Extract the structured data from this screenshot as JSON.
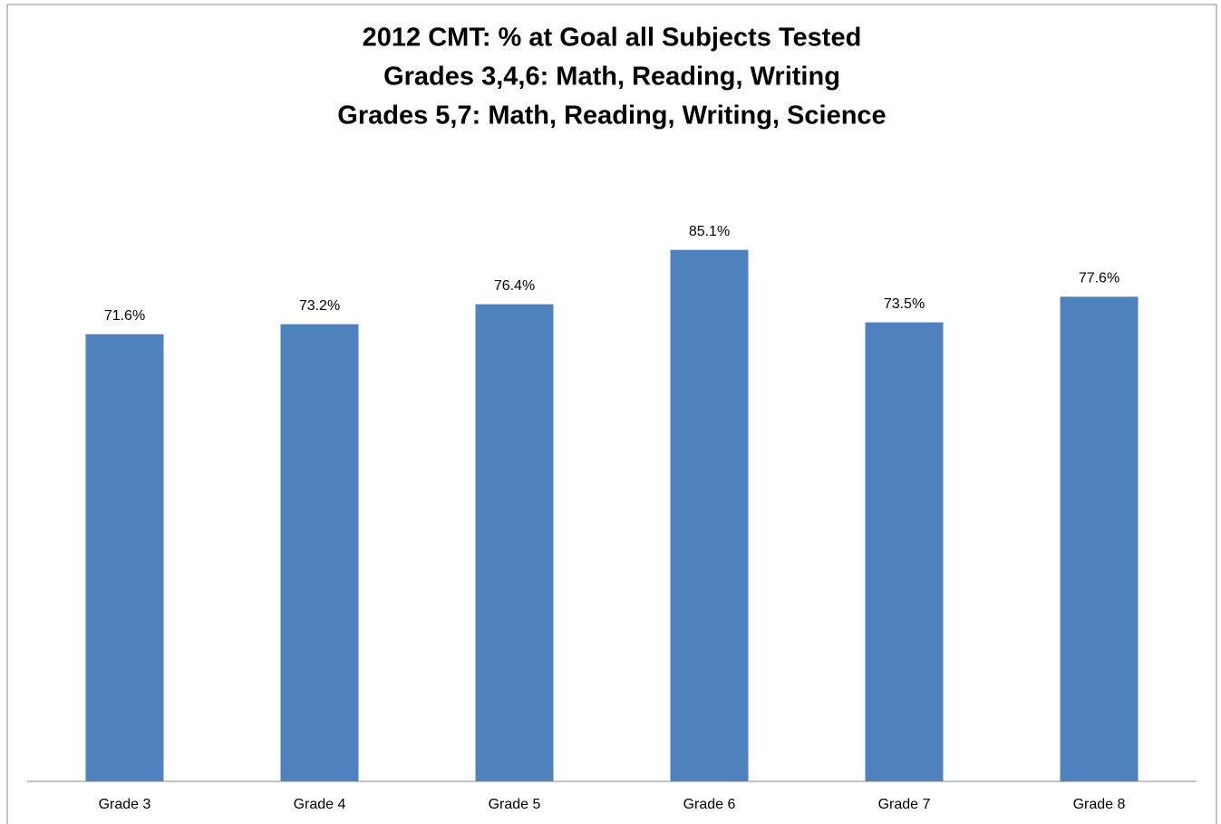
{
  "chart_data": {
    "type": "bar",
    "title": [
      "2012 CMT: % at Goal all Subjects Tested",
      "Grades 3,4,6: Math, Reading, Writing",
      "Grades 5,7: Math, Reading, Writing, Science"
    ],
    "categories": [
      "Grade 3",
      "Grade 4",
      "Grade 5",
      "Grade 6",
      "Grade 7",
      "Grade 8"
    ],
    "values": [
      71.6,
      73.2,
      76.4,
      85.1,
      73.5,
      77.6
    ],
    "value_labels": [
      "71.6%",
      "73.2%",
      "76.4%",
      "85.1%",
      "73.5%",
      "77.6%"
    ],
    "color": "#4f81bd",
    "ylim": [
      0,
      100
    ]
  }
}
